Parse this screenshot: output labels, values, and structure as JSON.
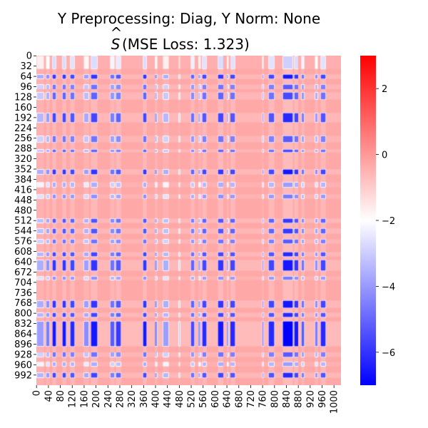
{
  "chart_data": {
    "type": "heatmap",
    "title_line1": "Y Preprocessing: Diag, Y Norm: None",
    "title_line2_symbol": "S",
    "title_line2_hat": "^",
    "title_line2_rest": " (MSE Loss: 1.323)",
    "matrix_size": 1024,
    "y_ticks": [
      "0",
      "32",
      "64",
      "96",
      "128",
      "160",
      "192",
      "224",
      "256",
      "288",
      "320",
      "352",
      "384",
      "416",
      "448",
      "480",
      "512",
      "544",
      "576",
      "608",
      "640",
      "672",
      "704",
      "736",
      "768",
      "800",
      "832",
      "864",
      "896",
      "928",
      "960",
      "992"
    ],
    "x_ticks": [
      "0",
      "40",
      "80",
      "120",
      "160",
      "200",
      "240",
      "280",
      "320",
      "360",
      "400",
      "440",
      "480",
      "520",
      "560",
      "600",
      "640",
      "680",
      "720",
      "760",
      "800",
      "840",
      "880",
      "920",
      "960",
      "1000"
    ],
    "colorbar": {
      "vmin": -7,
      "vmax": 3,
      "center": -2,
      "ticks": [
        "2",
        "0",
        "−2",
        "−4",
        "−6"
      ],
      "tick_values": [
        2,
        0,
        -2,
        -4,
        -6
      ],
      "colormap": "bwr",
      "low_color": "#0000ff",
      "mid_color": "#ffffff",
      "high_color": "#ff0000"
    },
    "dominant_value": -0.3,
    "row_band_profile": [
      {
        "range": [
          0,
          40
        ],
        "level": 0.35
      },
      {
        "range": [
          56,
          72
        ],
        "level": 0.9
      },
      {
        "range": [
          88,
          104
        ],
        "level": 0.7
      },
      {
        "range": [
          112,
          136
        ],
        "level": 0.75
      },
      {
        "range": [
          176,
          208
        ],
        "level": 0.85
      },
      {
        "range": [
          248,
          270
        ],
        "level": 0.7
      },
      {
        "range": [
          290,
          300
        ],
        "level": 0.75
      },
      {
        "range": [
          352,
          368
        ],
        "level": 0.9
      },
      {
        "range": [
          392,
          408
        ],
        "level": 0.5
      },
      {
        "range": [
          428,
          444
        ],
        "level": 0.6
      },
      {
        "range": [
          504,
          520
        ],
        "level": 0.8
      },
      {
        "range": [
          536,
          552
        ],
        "level": 0.8
      },
      {
        "range": [
          568,
          584
        ],
        "level": 0.7
      },
      {
        "range": [
          608,
          624
        ],
        "level": 0.85
      },
      {
        "range": [
          632,
          668
        ],
        "level": 0.9
      },
      {
        "range": [
          684,
          696
        ],
        "level": 0.6
      },
      {
        "range": [
          760,
          784
        ],
        "level": 0.9
      },
      {
        "range": [
          796,
          812
        ],
        "level": 0.85
      },
      {
        "range": [
          824,
          904
        ],
        "level": 1.0
      },
      {
        "range": [
          920,
          936
        ],
        "level": 0.7
      },
      {
        "range": [
          950,
          966
        ],
        "level": 0.5
      },
      {
        "range": [
          984,
          1000
        ],
        "level": 0.85
      }
    ],
    "col_band_profile": [
      {
        "range": [
          0,
          24
        ],
        "level": 0.5
      },
      {
        "range": [
          30,
          44
        ],
        "level": 0.6
      },
      {
        "range": [
          52,
          66
        ],
        "level": 0.9
      },
      {
        "range": [
          86,
          100
        ],
        "level": 0.9
      },
      {
        "range": [
          112,
          128
        ],
        "level": 0.85
      },
      {
        "range": [
          158,
          176
        ],
        "level": 0.55
      },
      {
        "range": [
          182,
          204
        ],
        "level": 0.9
      },
      {
        "range": [
          246,
          262
        ],
        "level": 0.7
      },
      {
        "range": [
          266,
          284
        ],
        "level": 0.8
      },
      {
        "range": [
          356,
          370
        ],
        "level": 0.9
      },
      {
        "range": [
          396,
          406
        ],
        "level": 0.55
      },
      {
        "range": [
          424,
          444
        ],
        "level": 0.5
      },
      {
        "range": [
          476,
          484
        ],
        "level": 0.4
      },
      {
        "range": [
          516,
          530
        ],
        "level": 0.75
      },
      {
        "range": [
          542,
          552
        ],
        "level": 0.5
      },
      {
        "range": [
          556,
          572
        ],
        "level": 0.85
      },
      {
        "range": [
          608,
          628
        ],
        "level": 0.9
      },
      {
        "range": [
          638,
          646
        ],
        "level": 0.5
      },
      {
        "range": [
          650,
          668
        ],
        "level": 0.85
      },
      {
        "range": [
          756,
          764
        ],
        "level": 0.6
      },
      {
        "range": [
          778,
          800
        ],
        "level": 0.85
      },
      {
        "range": [
          826,
          862
        ],
        "level": 1.0
      },
      {
        "range": [
          864,
          880
        ],
        "level": 0.9
      },
      {
        "range": [
          888,
          900
        ],
        "level": 0.7
      },
      {
        "range": [
          934,
          946
        ],
        "level": 0.6
      },
      {
        "range": [
          954,
          972
        ],
        "level": 0.85
      }
    ]
  }
}
